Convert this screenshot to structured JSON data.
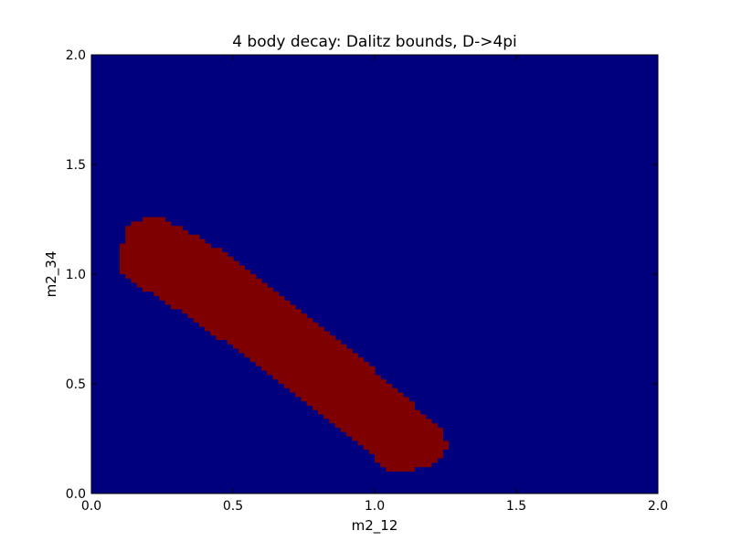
{
  "chart_data": {
    "type": "heatmap",
    "title": "4 body decay: Dalitz bounds, D->4pi",
    "xlabel": "m2_12",
    "ylabel": "m2_34",
    "xlim": [
      0.0,
      2.0
    ],
    "ylim": [
      0.0,
      2.0
    ],
    "x_ticks": [
      "0.0",
      "0.5",
      "1.0",
      "1.5",
      "2.0"
    ],
    "y_ticks": [
      "0.0",
      "0.5",
      "1.0",
      "1.5",
      "2.0"
    ],
    "grid": false,
    "legend": "none",
    "colors": {
      "outside": "#00007f",
      "inside": "#7f0000"
    },
    "region_upper_bound": [
      [
        0.1,
        1.0
      ],
      [
        0.1,
        1.1
      ],
      [
        0.12,
        1.2
      ],
      [
        0.15,
        1.23
      ],
      [
        0.2,
        1.26
      ],
      [
        0.25,
        1.25
      ],
      [
        0.3,
        1.22
      ],
      [
        0.35,
        1.19
      ],
      [
        0.4,
        1.15
      ],
      [
        0.45,
        1.11
      ],
      [
        0.5,
        1.07
      ],
      [
        0.55,
        1.03
      ],
      [
        0.6,
        0.98
      ],
      [
        0.65,
        0.93
      ],
      [
        0.7,
        0.88
      ],
      [
        0.75,
        0.83
      ],
      [
        0.8,
        0.78
      ],
      [
        0.85,
        0.73
      ],
      [
        0.9,
        0.67
      ],
      [
        0.95,
        0.62
      ],
      [
        1.0,
        0.56
      ],
      [
        1.05,
        0.51
      ],
      [
        1.1,
        0.45
      ],
      [
        1.15,
        0.39
      ],
      [
        1.2,
        0.33
      ],
      [
        1.24,
        0.29
      ],
      [
        1.26,
        0.21
      ]
    ],
    "region_lower_bound": [
      [
        0.1,
        1.0
      ],
      [
        0.15,
        0.96
      ],
      [
        0.2,
        0.92
      ],
      [
        0.25,
        0.88
      ],
      [
        0.3,
        0.84
      ],
      [
        0.35,
        0.8
      ],
      [
        0.4,
        0.76
      ],
      [
        0.45,
        0.71
      ],
      [
        0.5,
        0.67
      ],
      [
        0.55,
        0.63
      ],
      [
        0.6,
        0.58
      ],
      [
        0.65,
        0.53
      ],
      [
        0.7,
        0.48
      ],
      [
        0.75,
        0.43
      ],
      [
        0.8,
        0.38
      ],
      [
        0.85,
        0.33
      ],
      [
        0.9,
        0.28
      ],
      [
        0.95,
        0.22
      ],
      [
        1.0,
        0.16
      ],
      [
        1.05,
        0.11
      ],
      [
        1.1,
        0.1
      ],
      [
        1.15,
        0.11
      ],
      [
        1.2,
        0.13
      ],
      [
        1.24,
        0.17
      ],
      [
        1.26,
        0.21
      ]
    ]
  }
}
